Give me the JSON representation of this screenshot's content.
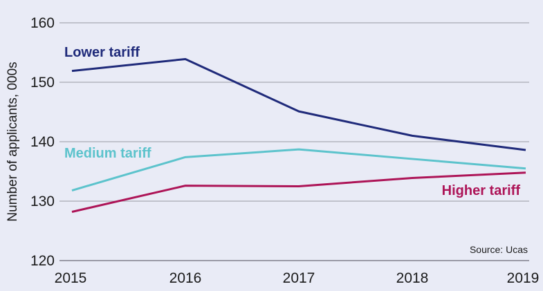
{
  "chart_data": {
    "type": "line",
    "title": "",
    "xlabel": "",
    "ylabel": "Number of applicants, 000s",
    "x": [
      2015,
      2016,
      2017,
      2018,
      2019
    ],
    "ylim": [
      120,
      160
    ],
    "yticks": [
      120,
      130,
      140,
      150,
      160
    ],
    "grid": true,
    "series": [
      {
        "name": "Lower tariff",
        "color": "#1f2a7a",
        "values": [
          151.9,
          153.9,
          145.1,
          141.0,
          138.6
        ]
      },
      {
        "name": "Medium tariff",
        "color": "#5cc3cc",
        "values": [
          131.8,
          137.4,
          138.7,
          137.1,
          135.5
        ]
      },
      {
        "name": "Higher tariff",
        "color": "#ad1457",
        "values": [
          128.2,
          132.6,
          132.5,
          133.9,
          134.8
        ]
      }
    ],
    "source": "Source: Ucas"
  }
}
